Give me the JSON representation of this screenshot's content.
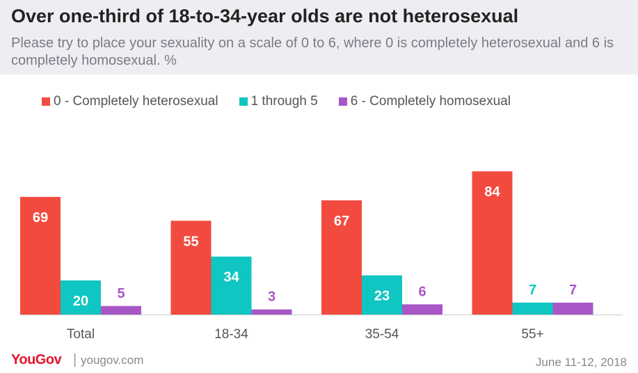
{
  "chart_data": {
    "type": "bar",
    "title": "Over one-third of 18-to-34-year olds are not heterosexual",
    "subtitle": "Please try to place your sexuality on a scale of 0 to 6, where 0 is completely heterosexual and 6 is completely homosexual. %",
    "categories": [
      "Total",
      "18-34",
      "35-54",
      "55+"
    ],
    "series": [
      {
        "name": "0 - Completely heterosexual",
        "color": "#f24a3f",
        "label_color": "#ffffff",
        "values": [
          69,
          55,
          67,
          84
        ]
      },
      {
        "name": "1 through 5",
        "color": "#0fc6c2",
        "label_color": "#ffffff",
        "values": [
          20,
          34,
          23,
          7
        ]
      },
      {
        "name": "6 - Completely homosexual",
        "color": "#a957c7",
        "label_color": "#a957c7",
        "values": [
          5,
          3,
          6,
          7
        ]
      }
    ],
    "xlabel": "",
    "ylabel": "",
    "ylim": [
      0,
      100
    ],
    "grid": false,
    "legend_position": "top"
  },
  "footer": {
    "brand": "YouGov",
    "separator": "|",
    "url": "yougov.com",
    "date": "June 11-12, 2018"
  }
}
